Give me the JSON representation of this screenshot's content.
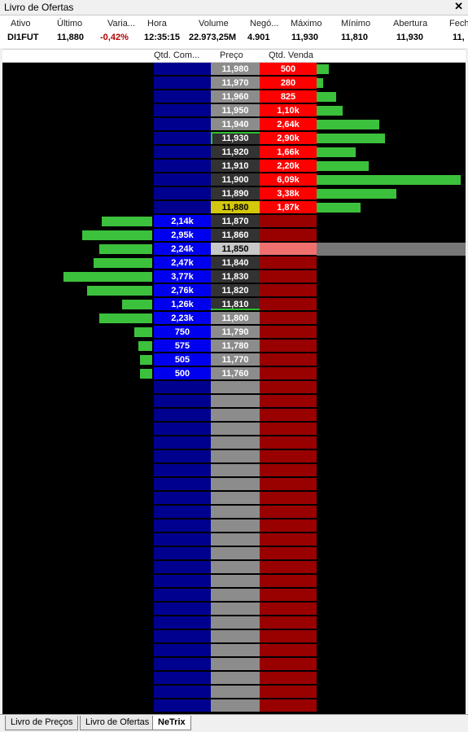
{
  "window": {
    "title": "Livro de Ofertas",
    "close_glyph": "✕"
  },
  "quote": {
    "headers": [
      "Ativo",
      "Último",
      "Varia...",
      "Hora",
      "Volume",
      "Negó...",
      "Máximo",
      "Mínimo",
      "Abertura",
      "Fech"
    ],
    "values": [
      "DI1FUT",
      "11,880",
      "-0,42%",
      "12:35:15",
      "22.973,25M",
      "4.901",
      "11,930",
      "11,810",
      "11,930",
      "11,"
    ]
  },
  "columns": {
    "buy": "Qtd. Com...",
    "price": "Preço",
    "sell": "Qtd. Venda"
  },
  "book": {
    "ask_levels": [
      {
        "price": "11,980",
        "qty": "500",
        "size": 500
      },
      {
        "price": "11,970",
        "qty": "280",
        "size": 280
      },
      {
        "price": "11,960",
        "qty": "825",
        "size": 825
      },
      {
        "price": "11,950",
        "qty": "1,10k",
        "size": 1100
      },
      {
        "price": "11,940",
        "qty": "2,64k",
        "size": 2640
      },
      {
        "price": "11,930",
        "qty": "2,90k",
        "size": 2900
      },
      {
        "price": "11,920",
        "qty": "1,66k",
        "size": 1660
      },
      {
        "price": "11,910",
        "qty": "2,20k",
        "size": 2200
      },
      {
        "price": "11,900",
        "qty": "6,09k",
        "size": 6090
      },
      {
        "price": "11,890",
        "qty": "3,38k",
        "size": 3380
      },
      {
        "price": "11,880",
        "qty": "1,87k",
        "size": 1870
      }
    ],
    "bid_levels": [
      {
        "price": "11,870",
        "qty": "2,14k",
        "size": 2140
      },
      {
        "price": "11,860",
        "qty": "2,95k",
        "size": 2950
      },
      {
        "price": "11,850",
        "qty": "2,24k",
        "size": 2240
      },
      {
        "price": "11,840",
        "qty": "2,47k",
        "size": 2470
      },
      {
        "price": "11,830",
        "qty": "3,77k",
        "size": 3770
      },
      {
        "price": "11,820",
        "qty": "2,76k",
        "size": 2760
      },
      {
        "price": "11,810",
        "qty": "1,26k",
        "size": 1260
      },
      {
        "price": "11,800",
        "qty": "2,23k",
        "size": 2230
      },
      {
        "price": "11,790",
        "qty": "750",
        "size": 750
      },
      {
        "price": "11,780",
        "qty": "575",
        "size": 575
      },
      {
        "price": "11,770",
        "qty": "505",
        "size": 505
      },
      {
        "price": "11,760",
        "qty": "500",
        "size": 500
      }
    ],
    "last_price": "11,880",
    "highlighted_price": "11,850",
    "session_high": "11,930",
    "session_low": "11,810",
    "empty_rows": 24
  },
  "colors": {
    "buy_qty_bg": "#0000ee",
    "buy_empty_bg": "#00008f",
    "sell_qty_bg": "#ff0000",
    "sell_empty_bg": "#990000",
    "price_light": "#8c8c8c",
    "price_dark": "#333333",
    "last_price_bg": "#d4c80c",
    "bar": "#3cc13c",
    "highlight_sell": "#f07070",
    "highlight_bar": "#777777",
    "highlight_price": "#c8c8c8"
  },
  "tabs": [
    {
      "label": "Livro de Preços",
      "active": false
    },
    {
      "label": "Livro de Ofertas",
      "active": false
    },
    {
      "label": "NeTrix",
      "active": true
    }
  ]
}
